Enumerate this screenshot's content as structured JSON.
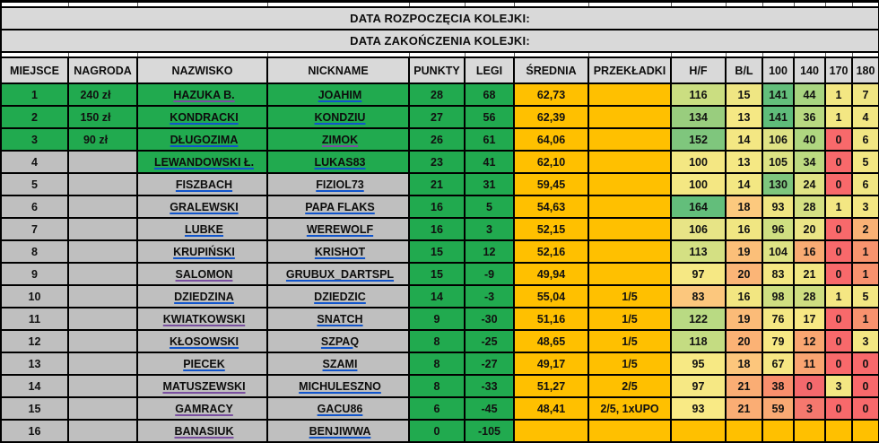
{
  "banner": {
    "start": "DATA ROZPOCZĘCIA KOLEJKI:",
    "end": "DATA ZAKOŃCZENIA KOLEJKI:"
  },
  "columns": [
    {
      "key": "miejsce",
      "label": "MIEJSCE"
    },
    {
      "key": "nagroda",
      "label": "NAGRODA"
    },
    {
      "key": "nazwisko",
      "label": "NAZWISKO"
    },
    {
      "key": "nickname",
      "label": "NICKNAME"
    },
    {
      "key": "punkty",
      "label": "PUNKTY"
    },
    {
      "key": "legi",
      "label": "LEGI"
    },
    {
      "key": "srednia",
      "label": "ŚREDNIA"
    },
    {
      "key": "przekladki",
      "label": "PRZEKŁADKI"
    },
    {
      "key": "hf",
      "label": "H/F"
    },
    {
      "key": "bl",
      "label": "B/L"
    },
    {
      "key": "100",
      "label": "100"
    },
    {
      "key": "140",
      "label": "140"
    },
    {
      "key": "170",
      "label": "170"
    },
    {
      "key": "180",
      "label": "180"
    }
  ],
  "palette": {
    "green": "#21AA4F",
    "orange": "#FFC000",
    "row_gray": "#BFBFBF",
    "header_gray": "#D9D9D9",
    "scale_red": "#F8696B",
    "scale_yellow": "#F3E783",
    "scale_green": "#63BE7B",
    "link_blue": "#1155CC",
    "link_purple": "#7A4FA0"
  },
  "rows": [
    {
      "miejsce": "1",
      "nagroda": "240 zł",
      "nazwisko": "HAZUKA B.",
      "nickname": "JOAHIM",
      "punkty": "28",
      "legi": "68",
      "srednia": "62,73",
      "przekladki": "",
      "left_green": true,
      "name_green": true,
      "nazwisko_link": "purple",
      "nickname_link": "blue",
      "stats": [
        {
          "v": "116",
          "c": "#CBDE81"
        },
        {
          "v": "15",
          "c": "#EFE683"
        },
        {
          "v": "141",
          "c": "#63BE7B"
        },
        {
          "v": "44",
          "c": "#A8D480"
        },
        {
          "v": "1",
          "c": "#F3E783"
        },
        {
          "v": "7",
          "c": "#F0E683"
        }
      ]
    },
    {
      "miejsce": "2",
      "nagroda": "150 zł",
      "nazwisko": "KONDRACKI",
      "nickname": "KONDZIU",
      "punkty": "27",
      "legi": "56",
      "srednia": "62,39",
      "przekladki": "",
      "left_green": true,
      "name_green": true,
      "nazwisko_link": "blue",
      "nickname_link": "blue",
      "stats": [
        {
          "v": "134",
          "c": "#99CD7E"
        },
        {
          "v": "13",
          "c": "#F5E884"
        },
        {
          "v": "141",
          "c": "#5FBC7A"
        },
        {
          "v": "36",
          "c": "#B8D981"
        },
        {
          "v": "1",
          "c": "#F3E783"
        },
        {
          "v": "4",
          "c": "#F2E783"
        }
      ]
    },
    {
      "miejsce": "3",
      "nagroda": "90 zł",
      "nazwisko": "DŁUGOZIMA",
      "nickname": "ZIMOK",
      "punkty": "26",
      "legi": "61",
      "srednia": "64,06",
      "przekladki": "",
      "left_green": true,
      "name_green": true,
      "nazwisko_link": "blue",
      "nickname_link": "purple",
      "stats": [
        {
          "v": "152",
          "c": "#7FC67D"
        },
        {
          "v": "14",
          "c": "#F3E783"
        },
        {
          "v": "106",
          "c": "#DFE385"
        },
        {
          "v": "40",
          "c": "#AFD680"
        },
        {
          "v": "0",
          "c": "#F8696B"
        },
        {
          "v": "6",
          "c": "#F1E683"
        }
      ]
    },
    {
      "miejsce": "4",
      "nagroda": "",
      "nazwisko": "LEWANDOWSKI Ł.",
      "nickname": "LUKAS83",
      "punkty": "23",
      "legi": "41",
      "srednia": "62,10",
      "przekladki": "",
      "left_green": false,
      "name_green": true,
      "nazwisko_link": "blue",
      "nickname_link": "blue",
      "stats": [
        {
          "v": "100",
          "c": "#F4E783"
        },
        {
          "v": "13",
          "c": "#F5E884"
        },
        {
          "v": "105",
          "c": "#DCE283"
        },
        {
          "v": "34",
          "c": "#BDDA81"
        },
        {
          "v": "0",
          "c": "#F8696B"
        },
        {
          "v": "5",
          "c": "#F3E783"
        }
      ]
    },
    {
      "miejsce": "5",
      "nagroda": "",
      "nazwisko": "FISZBACH",
      "nickname": "FIZIOL73",
      "punkty": "21",
      "legi": "31",
      "srednia": "59,45",
      "przekladki": "",
      "left_green": false,
      "name_green": false,
      "nazwisko_link": "blue",
      "nickname_link": "blue",
      "stats": [
        {
          "v": "100",
          "c": "#F4E783"
        },
        {
          "v": "14",
          "c": "#F3E783"
        },
        {
          "v": "130",
          "c": "#7EC57D"
        },
        {
          "v": "24",
          "c": "#E0E385"
        },
        {
          "v": "0",
          "c": "#F8696B"
        },
        {
          "v": "6",
          "c": "#F1E683"
        }
      ]
    },
    {
      "miejsce": "6",
      "nagroda": "",
      "nazwisko": "GRALEWSKI",
      "nickname": "PAPA FLAKS",
      "punkty": "16",
      "legi": "5",
      "srednia": "54,63",
      "przekladki": "",
      "left_green": false,
      "name_green": false,
      "nazwisko_link": "blue",
      "nickname_link": "blue",
      "stats": [
        {
          "v": "164",
          "c": "#63BE7B"
        },
        {
          "v": "18",
          "c": "#FCC97E"
        },
        {
          "v": "93",
          "c": "#F0E682"
        },
        {
          "v": "28",
          "c": "#D4E083"
        },
        {
          "v": "1",
          "c": "#F3E783"
        },
        {
          "v": "3",
          "c": "#F4E783"
        }
      ]
    },
    {
      "miejsce": "7",
      "nagroda": "",
      "nazwisko": "LUBKE",
      "nickname": "WEREWOLF",
      "punkty": "16",
      "legi": "3",
      "srednia": "52,15",
      "przekladki": "",
      "left_green": false,
      "name_green": false,
      "nazwisko_link": "blue",
      "nickname_link": "blue",
      "stats": [
        {
          "v": "106",
          "c": "#E7E486"
        },
        {
          "v": "16",
          "c": "#F0E682"
        },
        {
          "v": "96",
          "c": "#CFDF81"
        },
        {
          "v": "20",
          "c": "#EBE586"
        },
        {
          "v": "0",
          "c": "#F8696B"
        },
        {
          "v": "2",
          "c": "#F9B175"
        }
      ]
    },
    {
      "miejsce": "8",
      "nagroda": "",
      "nazwisko": "KRUPIŃSKI",
      "nickname": "KRISHOT",
      "punkty": "15",
      "legi": "12",
      "srednia": "52,16",
      "przekladki": "",
      "left_green": false,
      "name_green": false,
      "nazwisko_link": "blue",
      "nickname_link": "blue",
      "stats": [
        {
          "v": "113",
          "c": "#D4E083"
        },
        {
          "v": "19",
          "c": "#FBBF79"
        },
        {
          "v": "104",
          "c": "#DEE284"
        },
        {
          "v": "16",
          "c": "#F8AB73"
        },
        {
          "v": "0",
          "c": "#F8696B"
        },
        {
          "v": "1",
          "c": "#F8946E"
        }
      ]
    },
    {
      "miejsce": "9",
      "nagroda": "",
      "nazwisko": "SALOMON",
      "nickname": "GRUBUX_DARTSPL",
      "punkty": "15",
      "legi": "-9",
      "srednia": "49,94",
      "przekladki": "",
      "left_green": false,
      "name_green": false,
      "nazwisko_link": "purple",
      "nickname_link": "blue",
      "stats": [
        {
          "v": "97",
          "c": "#F6E884"
        },
        {
          "v": "20",
          "c": "#FBB577"
        },
        {
          "v": "83",
          "c": "#F4E783"
        },
        {
          "v": "21",
          "c": "#F2E783"
        },
        {
          "v": "0",
          "c": "#F8696B"
        },
        {
          "v": "1",
          "c": "#F8926E"
        }
      ]
    },
    {
      "miejsce": "10",
      "nagroda": "",
      "nazwisko": "DZIEDZINA",
      "nickname": "DZIEDZIC",
      "punkty": "14",
      "legi": "-3",
      "srednia": "55,04",
      "przekladki": "1/5",
      "left_green": false,
      "name_green": false,
      "nazwisko_link": "blue",
      "nickname_link": "blue",
      "stats": [
        {
          "v": "83",
          "c": "#FCC77D"
        },
        {
          "v": "16",
          "c": "#F2E681"
        },
        {
          "v": "98",
          "c": "#CFDF81"
        },
        {
          "v": "28",
          "c": "#CEDE81"
        },
        {
          "v": "1",
          "c": "#F5E783"
        },
        {
          "v": "5",
          "c": "#F3E783"
        }
      ]
    },
    {
      "miejsce": "11",
      "nagroda": "",
      "nazwisko": "KWIATKOWSKI",
      "nickname": "SNATCH",
      "punkty": "9",
      "legi": "-30",
      "srednia": "51,16",
      "przekladki": "1/5",
      "left_green": false,
      "name_green": false,
      "nazwisko_link": "purple",
      "nickname_link": "blue",
      "stats": [
        {
          "v": "122",
          "c": "#B9DA83"
        },
        {
          "v": "19",
          "c": "#FBBB78"
        },
        {
          "v": "76",
          "c": "#F4E783"
        },
        {
          "v": "17",
          "c": "#F7E884"
        },
        {
          "v": "0",
          "c": "#F8696B"
        },
        {
          "v": "1",
          "c": "#F8926E"
        }
      ]
    },
    {
      "miejsce": "12",
      "nagroda": "",
      "nazwisko": "KŁOSOWSKI",
      "nickname": "SZPAQ",
      "punkty": "8",
      "legi": "-25",
      "srednia": "48,65",
      "przekladki": "1/5",
      "left_green": false,
      "name_green": false,
      "nazwisko_link": "blue",
      "nickname_link": "blue",
      "stats": [
        {
          "v": "118",
          "c": "#C4DC82"
        },
        {
          "v": "20",
          "c": "#FBB275"
        },
        {
          "v": "79",
          "c": "#F7E884"
        },
        {
          "v": "12",
          "c": "#F9A671"
        },
        {
          "v": "0",
          "c": "#F8696B"
        },
        {
          "v": "3",
          "c": "#F3E783"
        }
      ]
    },
    {
      "miejsce": "13",
      "nagroda": "",
      "nazwisko": "PIECEK",
      "nickname": "SZAMI",
      "punkty": "8",
      "legi": "-27",
      "srednia": "49,17",
      "przekladki": "1/5",
      "left_green": false,
      "name_green": false,
      "nazwisko_link": "blue",
      "nickname_link": "blue",
      "stats": [
        {
          "v": "95",
          "c": "#F7E984"
        },
        {
          "v": "18",
          "c": "#FCC67C"
        },
        {
          "v": "67",
          "c": "#F6E783"
        },
        {
          "v": "11",
          "c": "#F9A471"
        },
        {
          "v": "0",
          "c": "#F8696B"
        },
        {
          "v": "0",
          "c": "#F8696B"
        }
      ]
    },
    {
      "miejsce": "14",
      "nagroda": "",
      "nazwisko": "MATUSZEWSKI",
      "nickname": "MICHULESZNO",
      "punkty": "8",
      "legi": "-33",
      "srednia": "51,27",
      "przekladki": "2/5",
      "left_green": false,
      "name_green": false,
      "nazwisko_link": "purple",
      "nickname_link": "blue",
      "stats": [
        {
          "v": "97",
          "c": "#F6E884"
        },
        {
          "v": "21",
          "c": "#FAAD74"
        },
        {
          "v": "38",
          "c": "#F98F6D"
        },
        {
          "v": "0",
          "c": "#F4696D"
        },
        {
          "v": "3",
          "c": "#F3E783"
        },
        {
          "v": "0",
          "c": "#F8696B"
        }
      ]
    },
    {
      "miejsce": "15",
      "nagroda": "",
      "nazwisko": "GAMRACY",
      "nickname": "GACU86",
      "punkty": "6",
      "legi": "-45",
      "srednia": "48,41",
      "przekladki": "2/5, 1xUPO",
      "left_green": false,
      "name_green": false,
      "nazwisko_link": "purple",
      "nickname_link": "blue",
      "stats": [
        {
          "v": "93",
          "c": "#F9EA85"
        },
        {
          "v": "21",
          "c": "#FAAD74"
        },
        {
          "v": "59",
          "c": "#F9A973"
        },
        {
          "v": "3",
          "c": "#F5786E"
        },
        {
          "v": "0",
          "c": "#F8696B"
        },
        {
          "v": "0",
          "c": "#F8696B"
        }
      ]
    },
    {
      "miejsce": "16",
      "nagroda": "",
      "nazwisko": "BANASIUK",
      "nickname": "BENJIWWA",
      "punkty": "0",
      "legi": "-105",
      "srednia": "",
      "przekladki": "",
      "left_green": false,
      "name_green": false,
      "nazwisko_link": "purple",
      "nickname_link": "blue",
      "stats": [
        {
          "v": "",
          "c": "#FFC000"
        },
        {
          "v": "",
          "c": "#FFC000"
        },
        {
          "v": "",
          "c": "#FFC000"
        },
        {
          "v": "",
          "c": "#FFC000"
        },
        {
          "v": "",
          "c": "#FFC000"
        },
        {
          "v": "",
          "c": "#FFC000"
        }
      ]
    }
  ]
}
